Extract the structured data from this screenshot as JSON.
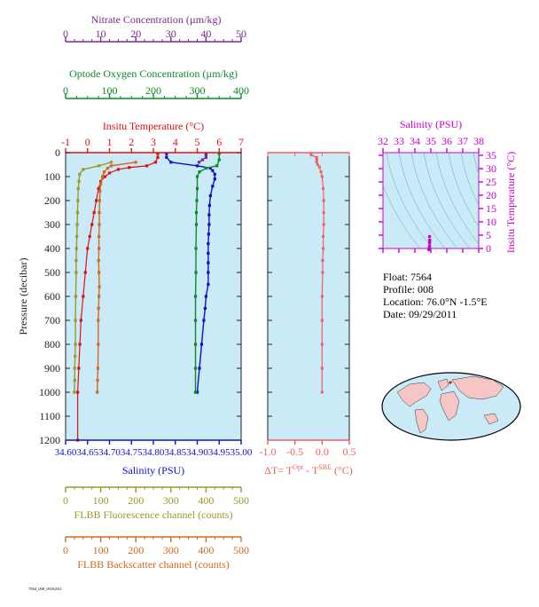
{
  "colors": {
    "panel_bg": "#c9eaf6",
    "axis_dark": "#222222",
    "nitrate": "#7a2a8c",
    "oxygen": "#0a8a2a",
    "temperature": "#e01010",
    "salinity": "#1010cc",
    "fluorescence": "#9a9a28",
    "backscatter": "#d2691e",
    "delta_t": "#f06060",
    "inset": "#cc00cc",
    "land": "#f6c6c6"
  },
  "axes": {
    "nitrate": {
      "label": "Nitrate Concentration (µm/kg)",
      "ticks": [
        "0",
        "10",
        "20",
        "30",
        "40",
        "50"
      ],
      "range": [
        0,
        50
      ]
    },
    "oxygen": {
      "label": "Optode Oxygen Concentration (µm/kg)",
      "ticks": [
        "0",
        "100",
        "200",
        "300",
        "400"
      ],
      "range": [
        0,
        400
      ]
    },
    "temperature": {
      "label": "Insitu Temperature (°C)",
      "ticks": [
        "-1",
        "0",
        "1",
        "2",
        "3",
        "4",
        "5",
        "6",
        "7"
      ],
      "range": [
        -1,
        7
      ]
    },
    "pressure": {
      "label": "Pressure (decibar)",
      "ticks": [
        "0",
        "100",
        "200",
        "300",
        "400",
        "500",
        "600",
        "700",
        "800",
        "900",
        "1000",
        "1100",
        "1200"
      ],
      "range": [
        0,
        1200
      ]
    },
    "salinity": {
      "label": "Salinity (PSU)",
      "ticks": [
        "34.60",
        "34.65",
        "34.70",
        "34.75",
        "34.80",
        "34.85",
        "34.90",
        "34.95",
        "35.00"
      ],
      "range": [
        34.6,
        35.0
      ]
    },
    "fluorescence": {
      "label": "FLBB Fluorescence channel (counts)",
      "ticks": [
        "0",
        "100",
        "200",
        "300",
        "400",
        "500"
      ],
      "range": [
        0,
        500
      ]
    },
    "backscatter": {
      "label": "FLBB Backscatter channel (counts)",
      "ticks": [
        "0",
        "100",
        "200",
        "300",
        "400",
        "500"
      ],
      "range": [
        0,
        500
      ]
    },
    "delta_t": {
      "ticks": [
        "-1.0",
        "-0.5",
        "0.0",
        "0.5"
      ],
      "range": [
        -1.0,
        0.5
      ],
      "label_main": "ΔT= T",
      "label_sup1": "Opt",
      "label_mid": " - T",
      "label_sup2": "SBE",
      "label_end": " (°C)"
    },
    "inset_salinity": {
      "label": "Salinity (PSU)",
      "ticks": [
        "32",
        "33",
        "34",
        "35",
        "36",
        "37",
        "38"
      ],
      "range": [
        32,
        38
      ]
    },
    "inset_temperature": {
      "label": "Insitu Temperature (°C)",
      "ticks": [
        "0",
        "5",
        "10",
        "15",
        "20",
        "25",
        "30",
        "35"
      ],
      "range": [
        0,
        35
      ]
    }
  },
  "info": {
    "float": "Float:  7564",
    "profile": "Profile:  008",
    "location": "Location:  76.0°N  -1.5°E",
    "date": "Date:  09/29/2011"
  },
  "footer_id": "7564_008_09292011",
  "chart_data": [
    {
      "type": "line",
      "title": "",
      "ylabel": "Pressure (decibar)",
      "ylim": [
        1200,
        0
      ],
      "grid": false,
      "series": [
        {
          "name": "Insitu Temperature (°C)",
          "axis": "temperature",
          "x": [
            3.2,
            3.2,
            3.1,
            2.7,
            1.9,
            1.4,
            1.0,
            0.8,
            0.6,
            0.5,
            0.4,
            0.3,
            0.2,
            0.1,
            0.0,
            -0.1,
            -0.2,
            -0.3,
            -0.35,
            -0.4,
            -0.45,
            -0.45
          ],
          "y": [
            4,
            20,
            40,
            55,
            62,
            70,
            85,
            100,
            120,
            150,
            200,
            250,
            300,
            350,
            400,
            500,
            600,
            700,
            800,
            900,
            1000,
            1200
          ]
        },
        {
          "name": "Salinity (PSU)",
          "axis": "salinity",
          "x": [
            34.83,
            34.83,
            34.84,
            34.9,
            34.93,
            34.935,
            34.94,
            34.94,
            34.935,
            34.93,
            34.928,
            34.927,
            34.927,
            34.926,
            34.925,
            34.925,
            34.925,
            34.925,
            34.925,
            34.92,
            34.918,
            34.915,
            34.91,
            34.905,
            34.9,
            34.9
          ],
          "y": [
            4,
            20,
            40,
            55,
            65,
            75,
            90,
            110,
            140,
            180,
            220,
            260,
            300,
            340,
            380,
            420,
            460,
            500,
            550,
            600,
            650,
            700,
            800,
            900,
            1000,
            1000
          ]
        },
        {
          "name": "Optode Oxygen Concentration (µm/kg)",
          "axis": "oxygen",
          "x": [
            350,
            350,
            345,
            320,
            305,
            300,
            300,
            299,
            298,
            298,
            297,
            297,
            296,
            296,
            296,
            296,
            296,
            296
          ],
          "y": [
            4,
            30,
            55,
            65,
            80,
            100,
            150,
            200,
            250,
            300,
            400,
            500,
            600,
            700,
            800,
            900,
            1000,
            1000
          ]
        },
        {
          "name": "Nitrate Concentration (µm/kg)",
          "axis": "nitrate",
          "x": [
            40,
            40,
            40,
            39,
            38
          ],
          "y": [
            4,
            10,
            20,
            30,
            40
          ]
        },
        {
          "name": "FLBB Fluorescence channel (counts)",
          "axis": "fluorescence",
          "x": [
            130,
            95,
            50,
            40,
            38,
            36,
            35,
            34,
            33,
            32,
            31,
            30,
            30,
            29,
            28,
            28,
            27,
            26,
            26,
            25
          ],
          "y": [
            40,
            55,
            70,
            90,
            120,
            150,
            200,
            250,
            300,
            350,
            400,
            450,
            500,
            600,
            700,
            800,
            850,
            900,
            950,
            1000
          ]
        },
        {
          "name": "FLBB Backscatter channel (counts)",
          "axis": "backscatter",
          "x": [
            200,
            130,
            120,
            110,
            105,
            100,
            98,
            97,
            96,
            96,
            95,
            95,
            94,
            95,
            96,
            95,
            94,
            93,
            93,
            92,
            91,
            90
          ],
          "y": [
            40,
            55,
            65,
            80,
            100,
            130,
            160,
            200,
            250,
            300,
            350,
            400,
            450,
            500,
            560,
            600,
            650,
            700,
            800,
            900,
            950,
            1000
          ]
        }
      ]
    },
    {
      "type": "line",
      "title": "",
      "ylim": [
        1200,
        0
      ],
      "series": [
        {
          "name": "ΔT",
          "x": [
            -0.2,
            -0.2,
            -0.1,
            -0.1,
            -0.1,
            -0.08,
            -0.05,
            -0.02,
            0.0,
            0.02,
            0.03,
            0.03,
            0.03,
            0.02,
            0.02,
            0.01,
            0.01,
            0.0,
            0.0,
            0.0,
            0.0,
            0.0
          ],
          "y": [
            4,
            10,
            20,
            30,
            40,
            50,
            60,
            80,
            100,
            150,
            200,
            250,
            300,
            350,
            400,
            450,
            500,
            600,
            700,
            800,
            900,
            1000
          ]
        }
      ]
    },
    {
      "type": "scatter",
      "title": "",
      "xlim": [
        32,
        38
      ],
      "ylim": [
        0,
        35
      ],
      "series": [
        {
          "name": "T-S",
          "x": [
            34.88,
            34.9,
            34.9,
            34.91,
            34.92,
            34.92,
            34.93,
            34.93,
            34.92
          ],
          "y": [
            -0.4,
            -0.3,
            0.0,
            0.5,
            1.0,
            2.0,
            2.8,
            3.2,
            4.5
          ]
        }
      ]
    }
  ]
}
